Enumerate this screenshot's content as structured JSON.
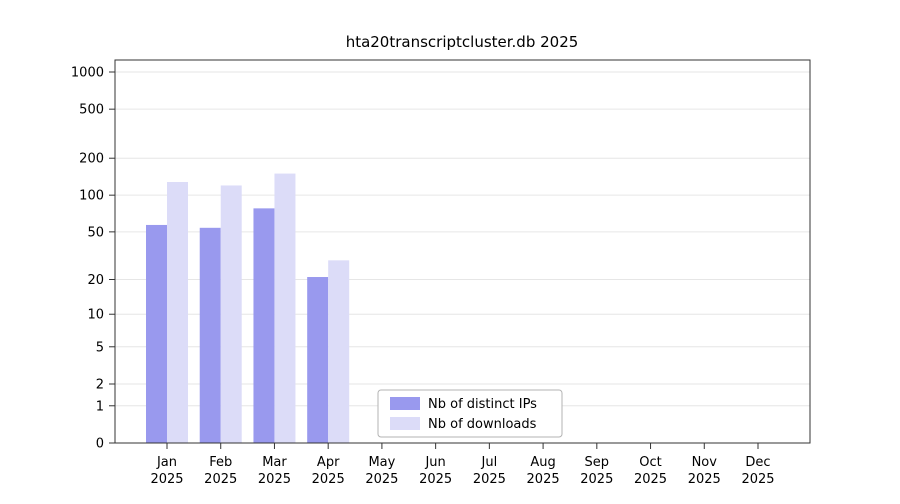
{
  "chart_data": {
    "type": "bar",
    "title": "hta20transcriptcluster.db 2025",
    "year_label": "2025",
    "categories": [
      "Jan",
      "Feb",
      "Mar",
      "Apr",
      "May",
      "Jun",
      "Jul",
      "Aug",
      "Sep",
      "Oct",
      "Nov",
      "Dec"
    ],
    "series": [
      {
        "name": "Nb of distinct IPs",
        "color": "#9999ee",
        "values": [
          57,
          54,
          78,
          21,
          0,
          0,
          0,
          0,
          0,
          0,
          0,
          0
        ]
      },
      {
        "name": "Nb of downloads",
        "color": "#dcdcf8",
        "values": [
          128,
          120,
          150,
          29,
          0,
          0,
          0,
          0,
          0,
          0,
          0,
          0
        ]
      }
    ],
    "y_ticks": [
      0,
      1,
      2,
      5,
      10,
      20,
      50,
      100,
      200,
      500,
      1000
    ],
    "y_scale": "log10(value+1)",
    "ylim": [
      0,
      1000
    ],
    "grid": true,
    "legend_position": "inside-bottom-center",
    "colors": {
      "grid": "#e6e6e6",
      "frame": "#333333",
      "legend_border": "#b3b3b3",
      "legend_background": "#ffffff"
    }
  }
}
